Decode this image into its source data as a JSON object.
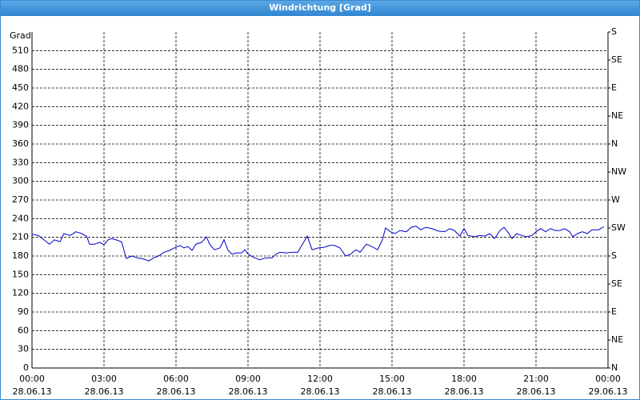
{
  "chart_data": {
    "type": "line",
    "title": "Windrichtung [Grad]",
    "y_label": "Grad",
    "xlim": [
      0,
      24
    ],
    "ylim": [
      0,
      540
    ],
    "y2lim": [
      0,
      540
    ],
    "grid": true,
    "xticks": [
      {
        "value": 0,
        "label": "00:00",
        "sublabel": "28.06.13"
      },
      {
        "value": 3,
        "label": "03:00",
        "sublabel": "28.06.13"
      },
      {
        "value": 6,
        "label": "06:00",
        "sublabel": "28.06.13"
      },
      {
        "value": 9,
        "label": "09:00",
        "sublabel": "28.06.13"
      },
      {
        "value": 12,
        "label": "12:00",
        "sublabel": "28.06.13"
      },
      {
        "value": 15,
        "label": "15:00",
        "sublabel": "28.06.13"
      },
      {
        "value": 18,
        "label": "18:00",
        "sublabel": "28.06.13"
      },
      {
        "value": 21,
        "label": "21:00",
        "sublabel": "28.06.13"
      },
      {
        "value": 24,
        "label": "00:00",
        "sublabel": "29.06.13"
      }
    ],
    "yticks": [
      0,
      30,
      60,
      90,
      120,
      150,
      180,
      210,
      240,
      270,
      300,
      330,
      360,
      390,
      420,
      450,
      480,
      510
    ],
    "y2ticks": [
      {
        "value": 0,
        "label": "N"
      },
      {
        "value": 45,
        "label": "NE"
      },
      {
        "value": 90,
        "label": "E"
      },
      {
        "value": 135,
        "label": "SE"
      },
      {
        "value": 180,
        "label": "S"
      },
      {
        "value": 225,
        "label": "SW"
      },
      {
        "value": 270,
        "label": "W"
      },
      {
        "value": 315,
        "label": "NW"
      },
      {
        "value": 360,
        "label": "N"
      },
      {
        "value": 405,
        "label": "NE"
      },
      {
        "value": 450,
        "label": "E"
      },
      {
        "value": 495,
        "label": "SE"
      },
      {
        "value": 540,
        "label": "S"
      }
    ],
    "series": [
      {
        "color": "#0000cc",
        "x": [
          0,
          0.27,
          0.5,
          0.73,
          0.93,
          1.17,
          1.33,
          1.6,
          1.83,
          2.07,
          2.27,
          2.4,
          2.6,
          2.83,
          3,
          3.17,
          3.33,
          3.5,
          3.73,
          3.93,
          4.17,
          4.4,
          4.67,
          4.87,
          5.07,
          5.27,
          5.5,
          5.73,
          5.93,
          6.17,
          6.33,
          6.5,
          6.67,
          6.83,
          7.07,
          7.27,
          7.4,
          7.6,
          7.83,
          8,
          8.17,
          8.33,
          8.53,
          8.73,
          8.87,
          9,
          9.27,
          9.5,
          9.73,
          10,
          10.17,
          10.33,
          10.6,
          10.83,
          11.07,
          11.27,
          11.47,
          11.67,
          11.93,
          12.17,
          12.4,
          12.6,
          12.83,
          13.07,
          13.27,
          13.5,
          13.67,
          13.93,
          14.17,
          14.4,
          14.6,
          14.73,
          14.93,
          15.13,
          15.33,
          15.6,
          15.8,
          16,
          16.2,
          16.4,
          16.67,
          16.93,
          17.2,
          17.4,
          17.6,
          17.83,
          18,
          18.17,
          18.4,
          18.67,
          18.87,
          19.07,
          19.27,
          19.5,
          19.67,
          19.87,
          20,
          20.2,
          20.4,
          20.6,
          20.83,
          21,
          21.2,
          21.4,
          21.6,
          21.8,
          22,
          22.2,
          22.4,
          22.53,
          22.73,
          22.93,
          23.13,
          23.33,
          23.6,
          23.83
        ],
        "values": [
          215,
          213,
          206,
          199,
          206,
          203,
          216,
          213,
          219,
          216,
          212,
          199,
          199,
          202,
          198,
          206,
          208,
          206,
          203,
          176,
          180,
          177,
          175,
          172,
          177,
          180,
          186,
          189,
          193,
          197,
          193,
          195,
          189,
          199,
          202,
          211,
          199,
          190,
          193,
          206,
          189,
          183,
          185,
          185,
          190,
          183,
          177,
          174,
          177,
          177,
          183,
          186,
          185,
          186,
          186,
          199,
          212,
          190,
          193,
          194,
          197,
          197,
          193,
          180,
          183,
          190,
          186,
          199,
          195,
          190,
          206,
          225,
          219,
          216,
          221,
          219,
          226,
          228,
          222,
          226,
          224,
          220,
          219,
          224,
          221,
          212,
          224,
          213,
          211,
          213,
          212,
          216,
          208,
          221,
          226,
          216,
          208,
          216,
          213,
          211,
          213,
          219,
          224,
          219,
          224,
          221,
          221,
          224,
          219,
          211,
          216,
          219,
          216,
          222,
          222,
          227
        ]
      }
    ]
  }
}
